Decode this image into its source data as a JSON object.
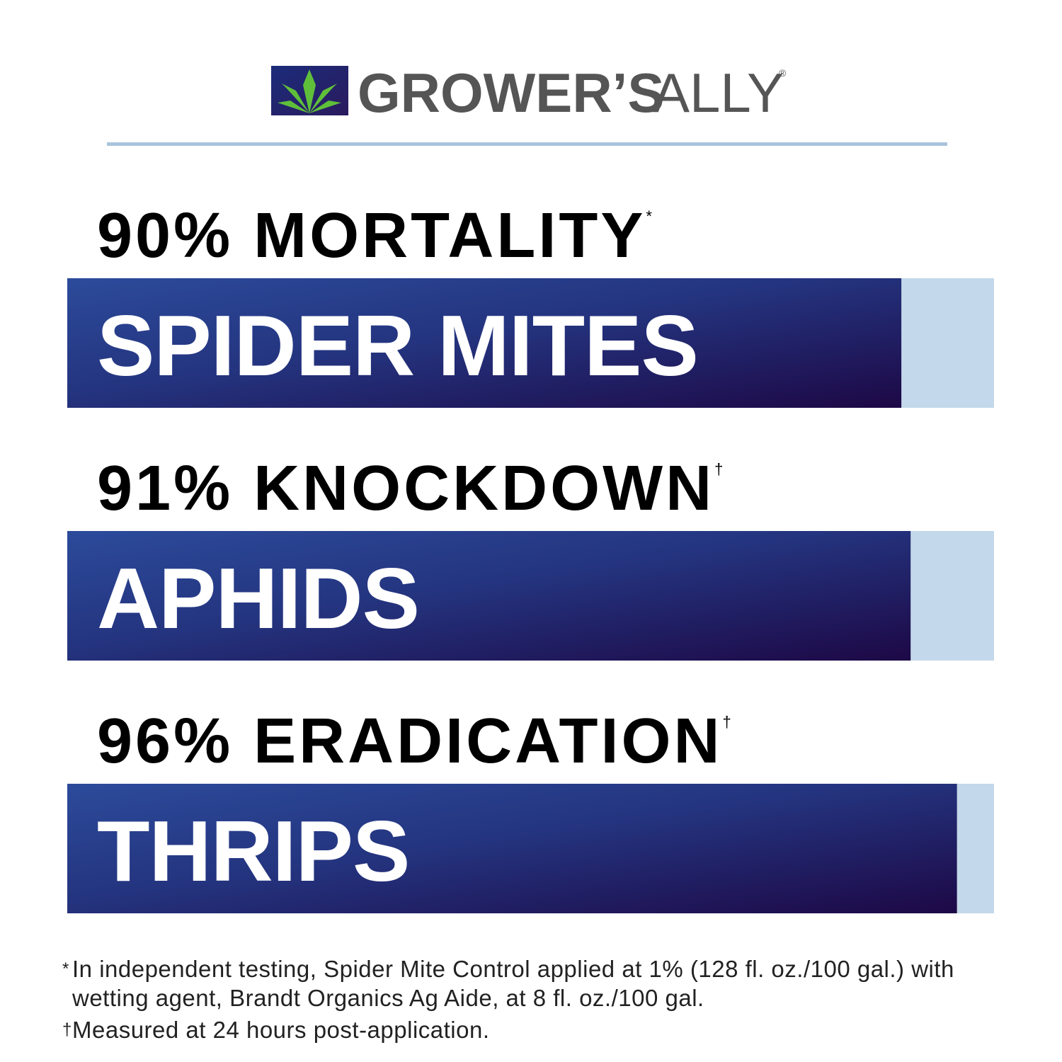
{
  "brand": {
    "name_bold": "GROWER’S",
    "name_light": "ALLY",
    "registered": "®"
  },
  "chart_data": {
    "type": "bar",
    "categories": [
      "SPIDER MITES",
      "APHIDS",
      "THRIPS"
    ],
    "values": [
      90,
      91,
      96
    ],
    "value_labels": [
      "90%",
      "91%",
      "96%"
    ],
    "measures": [
      "MORTALITY",
      "KNOCKDOWN",
      "ERADICATION"
    ],
    "footnote_marks": [
      "*",
      "†",
      "†"
    ],
    "xlim": [
      0,
      100
    ],
    "color": "#23307a",
    "track_color": "#c3d8ea"
  },
  "footnotes": [
    {
      "marker": "*",
      "text": "In independent testing, Spider Mite Control applied at 1% (128 fl. oz./100 gal.) with wetting agent, Brandt Organics Ag Aide, at 8 fl. oz./100 gal."
    },
    {
      "marker": "†",
      "text": "Measured at 24 hours post-application."
    }
  ]
}
